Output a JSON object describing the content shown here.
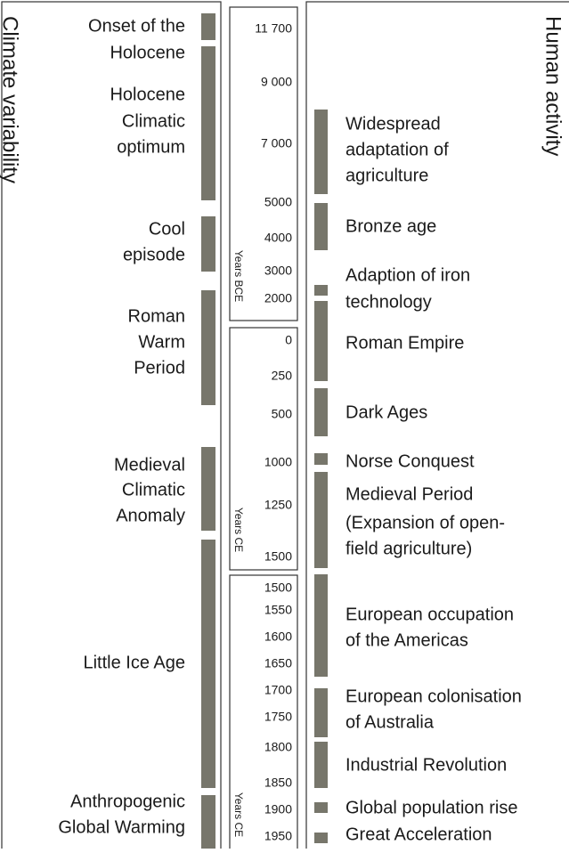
{
  "climate": {
    "title": "Climate variability",
    "periods": [
      {
        "label": [
          "Onset of the",
          "Holocene"
        ]
      },
      {
        "label": [
          "Holocene",
          "Climatic",
          "optimum"
        ]
      },
      {
        "label": [
          "Cool",
          "episode"
        ]
      },
      {
        "label": [
          "Roman",
          "Warm",
          "Period"
        ]
      },
      {
        "label": [
          "Medieval",
          "Climatic",
          "Anomaly"
        ]
      },
      {
        "label": [
          "Little Ice Age"
        ]
      },
      {
        "label": [
          "Anthropogenic",
          "Global Warming"
        ]
      }
    ]
  },
  "timeline": [
    {
      "axis_label": "Years BCE",
      "ticks": [
        "11 700",
        "9 000",
        "7 000",
        "5000",
        "4000",
        "3000",
        "2000"
      ]
    },
    {
      "axis_label": "Years CE",
      "ticks": [
        "0",
        "250",
        "500",
        "1000",
        "1250",
        "1500"
      ]
    },
    {
      "axis_label": "Years CE",
      "ticks": [
        "1500",
        "1550",
        "1600",
        "1650",
        "1700",
        "1750",
        "1800",
        "1850",
        "1900",
        "1950"
      ]
    }
  ],
  "human": {
    "title": "Human activity",
    "events": [
      {
        "label": [
          "Widespread",
          "adaptation of",
          "agriculture"
        ]
      },
      {
        "label": [
          "Bronze age"
        ]
      },
      {
        "label": [
          "Adaption of iron",
          "technology"
        ]
      },
      {
        "label": [
          "Roman Empire"
        ]
      },
      {
        "label": [
          "Dark Ages"
        ]
      },
      {
        "label": [
          "Norse Conquest"
        ]
      },
      {
        "label": [
          "Medieval Period",
          "(Expansion of open-",
          "field agriculture)"
        ]
      },
      {
        "label": [
          "European occupation",
          "of the Americas"
        ]
      },
      {
        "label": [
          "European colonisation",
          "of Australia"
        ]
      },
      {
        "label": [
          "Industrial Revolution"
        ]
      },
      {
        "label": [
          "Global population rise"
        ]
      },
      {
        "label": [
          "Great Acceleration"
        ]
      }
    ]
  }
}
